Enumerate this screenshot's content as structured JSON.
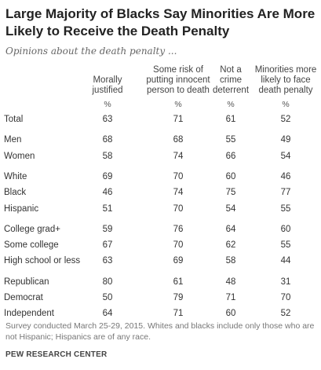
{
  "title": "Large Majority of Blacks Say Minorities Are More Likely to Receive the Death Penalty",
  "subtitle": "Opinions about the death penalty ...",
  "columns": [
    [
      "Morally",
      "justified"
    ],
    [
      "Some risk of",
      "putting innocent",
      "person to death"
    ],
    [
      "Not a",
      "crime",
      "deterrent"
    ],
    [
      "Minorities more",
      "likely to face",
      "death penalty"
    ]
  ],
  "unit": "%",
  "note": "Survey conducted March 25-29, 2015. Whites and blacks include only those who are not Hispanic; Hispanics are of any race.",
  "source": "PEW RESEARCH CENTER",
  "chart_data": {
    "type": "table",
    "title": "Large Majority of Blacks Say Minorities Are More Likely to Receive the Death Penalty",
    "subtitle": "Opinions about the death penalty ...",
    "columns": [
      "Morally justified",
      "Some risk of putting innocent person to death",
      "Not a crime deterrent",
      "Minorities more likely to face death penalty"
    ],
    "unit": "%",
    "groups": [
      [
        {
          "label": "Total",
          "values": [
            63,
            71,
            61,
            52
          ]
        }
      ],
      [
        {
          "label": "Men",
          "values": [
            68,
            68,
            55,
            49
          ]
        },
        {
          "label": "Women",
          "values": [
            58,
            74,
            66,
            54
          ]
        }
      ],
      [
        {
          "label": "White",
          "values": [
            69,
            70,
            60,
            46
          ]
        },
        {
          "label": "Black",
          "values": [
            46,
            74,
            75,
            77
          ]
        },
        {
          "label": "Hispanic",
          "values": [
            51,
            70,
            54,
            55
          ]
        }
      ],
      [
        {
          "label": "College grad+",
          "values": [
            59,
            76,
            64,
            60
          ]
        },
        {
          "label": "Some college",
          "values": [
            67,
            70,
            62,
            55
          ]
        },
        {
          "label": "High school or less",
          "values": [
            63,
            69,
            58,
            44
          ]
        }
      ],
      [
        {
          "label": "Republican",
          "values": [
            80,
            61,
            48,
            31
          ]
        },
        {
          "label": "Democrat",
          "values": [
            50,
            79,
            71,
            70
          ]
        },
        {
          "label": "Independent",
          "values": [
            64,
            71,
            60,
            52
          ]
        }
      ]
    ]
  }
}
